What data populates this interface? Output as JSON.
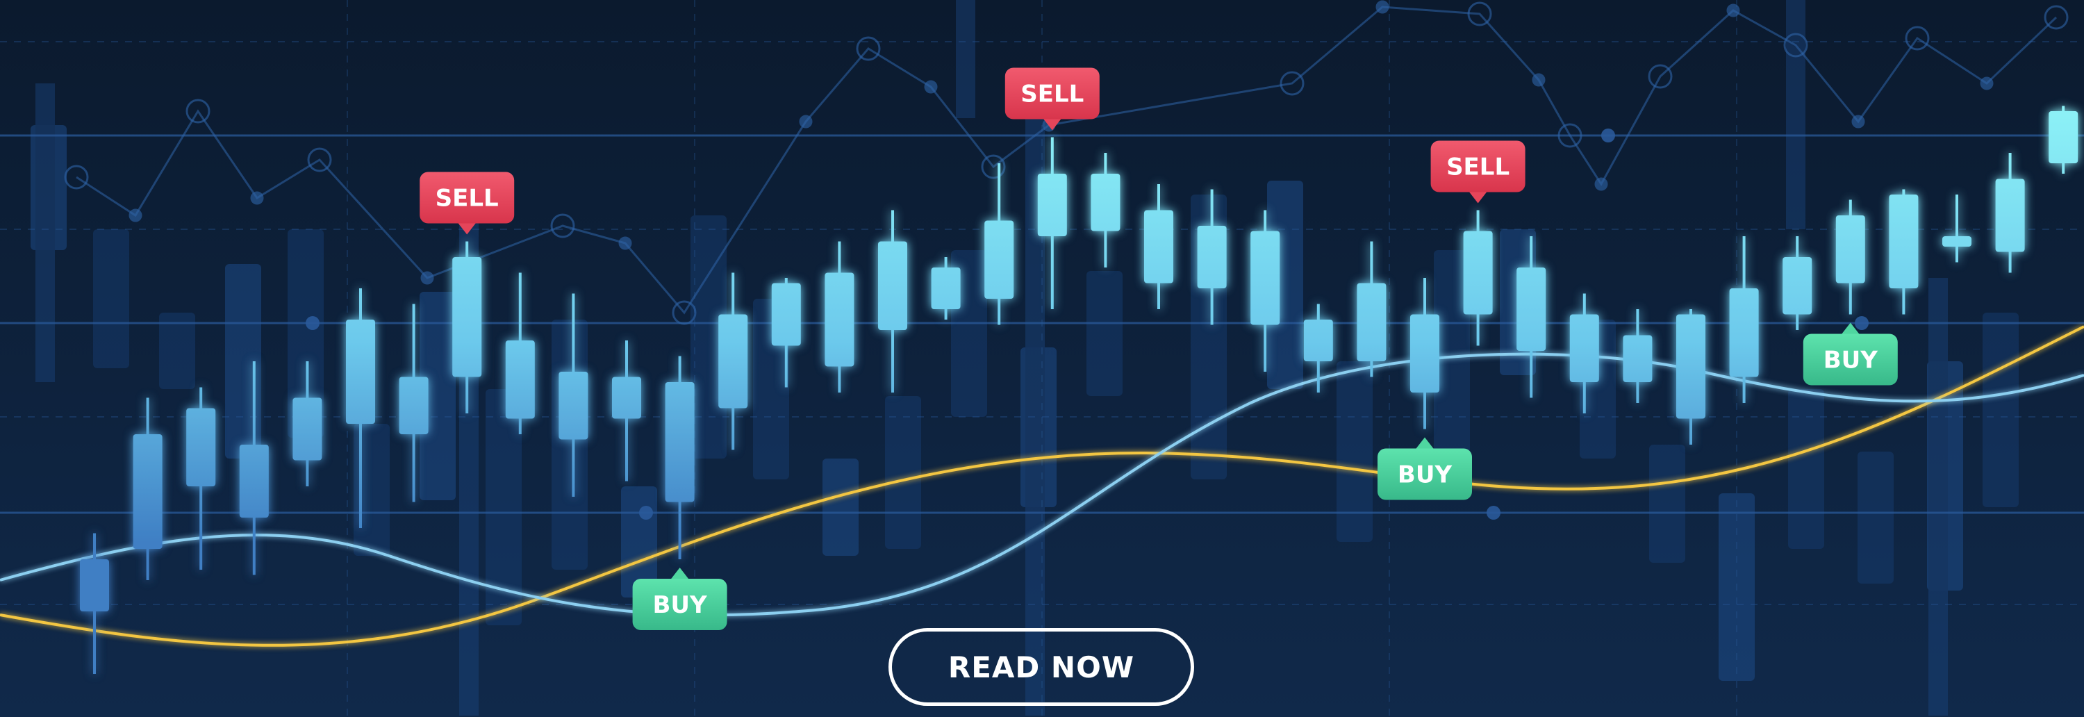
{
  "banner": {
    "cta_label": "READ NOW"
  },
  "colors": {
    "background_top": "#0b1a2e",
    "background_bottom": "#10294a",
    "candle_bright": "#8ef3f7",
    "candle_dim": "#3f7fc4",
    "sell": "#e5455a",
    "buy": "#4fd6a0",
    "yellow_line": "#f3c642",
    "blue_line": "#8ccff0",
    "grid": "#2a5a9a"
  },
  "chart_data": {
    "type": "candlestick",
    "title": "",
    "xlabel": "",
    "ylabel": "",
    "grid": true,
    "ylim": [
      0,
      100
    ],
    "candles": [
      {
        "open": 16,
        "close": 26,
        "high": 31,
        "low": 4
      },
      {
        "open": 28,
        "close": 50,
        "high": 57,
        "low": 22
      },
      {
        "open": 40,
        "close": 55,
        "high": 59,
        "low": 24
      },
      {
        "open": 34,
        "close": 48,
        "high": 64,
        "low": 23
      },
      {
        "open": 45,
        "close": 57,
        "high": 64,
        "low": 40
      },
      {
        "open": 52,
        "close": 72,
        "high": 78,
        "low": 32
      },
      {
        "open": 50,
        "close": 61,
        "high": 75,
        "low": 37
      },
      {
        "open": 61,
        "close": 84,
        "high": 87,
        "low": 54
      },
      {
        "open": 68,
        "close": 53,
        "high": 81,
        "low": 50
      },
      {
        "open": 62,
        "close": 49,
        "high": 77,
        "low": 38
      },
      {
        "open": 61,
        "close": 53,
        "high": 68,
        "low": 41
      },
      {
        "open": 60,
        "close": 37,
        "high": 65,
        "low": 26
      },
      {
        "open": 55,
        "close": 73,
        "high": 81,
        "low": 47
      },
      {
        "open": 67,
        "close": 79,
        "high": 80,
        "low": 59
      },
      {
        "open": 63,
        "close": 81,
        "high": 87,
        "low": 58
      },
      {
        "open": 70,
        "close": 87,
        "high": 93,
        "low": 58
      },
      {
        "open": 74,
        "close": 82,
        "high": 84,
        "low": 72
      },
      {
        "open": 76,
        "close": 91,
        "high": 102,
        "low": 71
      },
      {
        "open": 88,
        "close": 100,
        "high": 107,
        "low": 74
      },
      {
        "open": 100,
        "close": 89,
        "high": 104,
        "low": 82
      },
      {
        "open": 93,
        "close": 79,
        "high": 98,
        "low": 74
      },
      {
        "open": 78,
        "close": 90,
        "high": 97,
        "low": 71
      },
      {
        "open": 89,
        "close": 71,
        "high": 93,
        "low": 62
      },
      {
        "open": 64,
        "close": 72,
        "high": 75,
        "low": 58
      },
      {
        "open": 64,
        "close": 79,
        "high": 87,
        "low": 61
      },
      {
        "open": 58,
        "close": 73,
        "high": 80,
        "low": 51
      },
      {
        "open": 73,
        "close": 89,
        "high": 93,
        "low": 67
      },
      {
        "open": 82,
        "close": 66,
        "high": 88,
        "low": 57
      },
      {
        "open": 73,
        "close": 60,
        "high": 77,
        "low": 54
      },
      {
        "open": 69,
        "close": 60,
        "high": 74,
        "low": 56
      },
      {
        "open": 53,
        "close": 73,
        "high": 74,
        "low": 48
      },
      {
        "open": 61,
        "close": 78,
        "high": 88,
        "low": 56
      },
      {
        "open": 73,
        "close": 84,
        "high": 88,
        "low": 70
      },
      {
        "open": 79,
        "close": 92,
        "high": 95,
        "low": 73
      },
      {
        "open": 78,
        "close": 96,
        "high": 97,
        "low": 73
      },
      {
        "open": 88,
        "close": 86,
        "high": 96,
        "low": 83
      },
      {
        "open": 85,
        "close": 99,
        "high": 104,
        "low": 81
      },
      {
        "open": 102,
        "close": 112,
        "high": 113,
        "low": 100
      }
    ],
    "signals": [
      {
        "label": "SELL",
        "type": "sell",
        "candle": 7
      },
      {
        "label": "BUY",
        "type": "buy",
        "candle": 11
      },
      {
        "label": "SELL",
        "type": "sell",
        "candle": 18
      },
      {
        "label": "BUY",
        "type": "buy",
        "candle": 25
      },
      {
        "label": "SELL",
        "type": "sell",
        "candle": 26
      },
      {
        "label": "BUY",
        "type": "buy",
        "candle": 33
      }
    ]
  }
}
